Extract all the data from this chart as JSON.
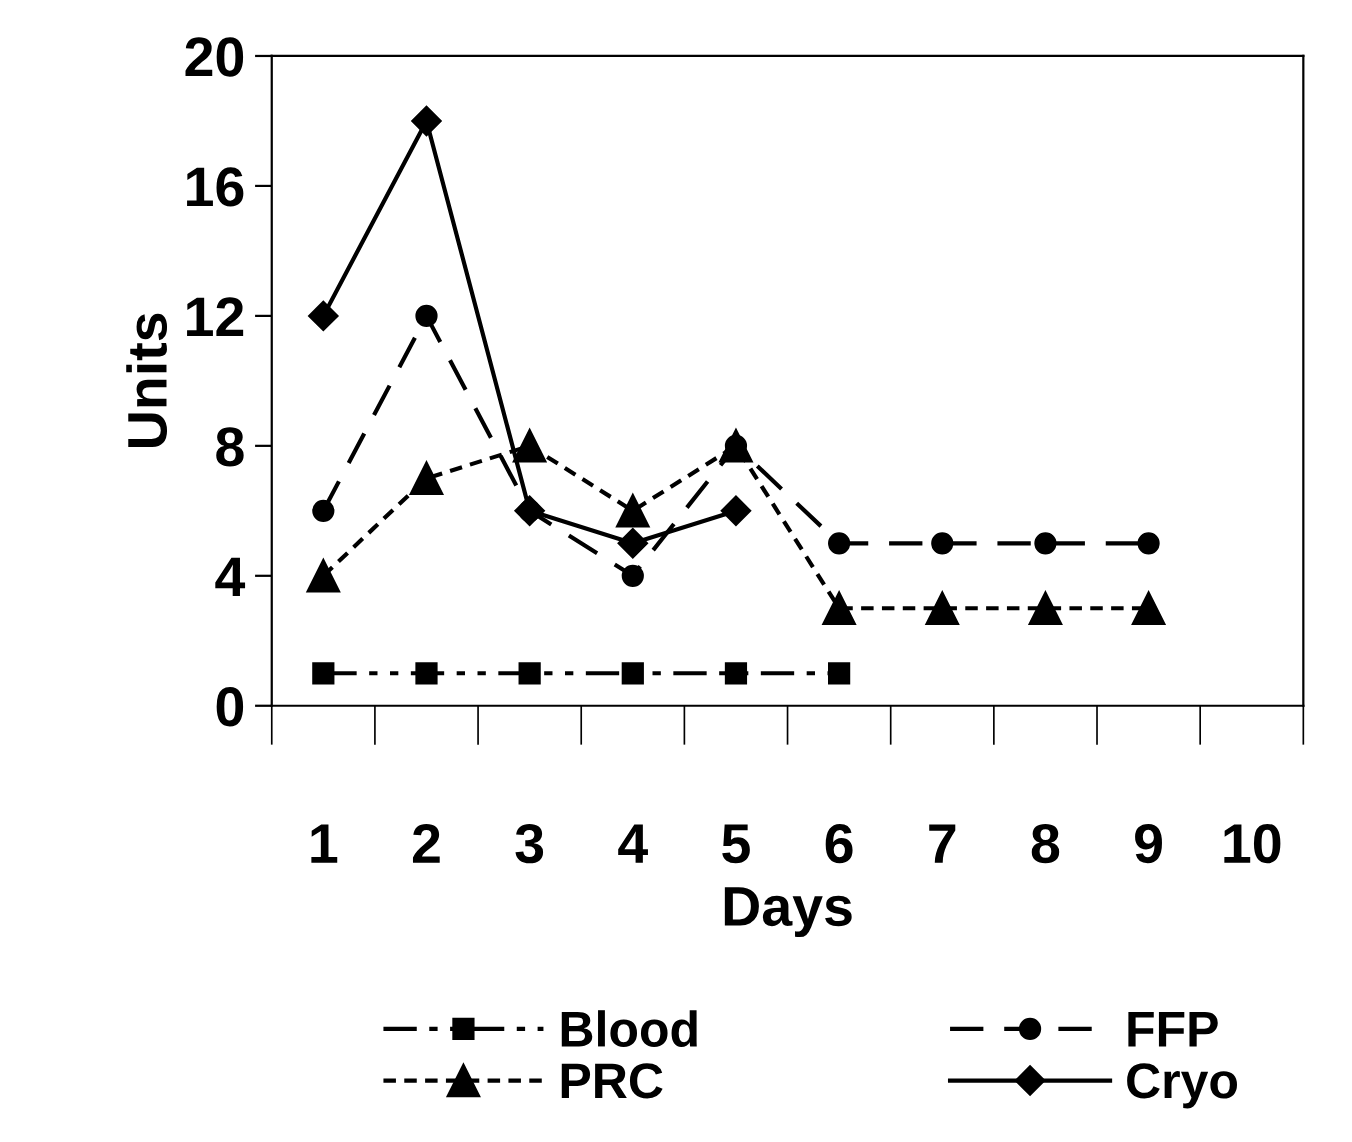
{
  "chart_data": {
    "type": "line",
    "xlabel": "Days",
    "ylabel": "Units",
    "categories": [
      "1",
      "2",
      "3",
      "4",
      "5",
      "6",
      "7",
      "8",
      "9",
      "10"
    ],
    "ylim": [
      0,
      20
    ],
    "yticks": [
      0,
      4,
      8,
      12,
      16,
      20
    ],
    "grid": false,
    "legend": "bottom",
    "series": [
      {
        "name": "Blood",
        "color": "#000000",
        "marker": "square",
        "line_style": "dashdotdot",
        "values": [
          1,
          1,
          1,
          1,
          1,
          1,
          null,
          null,
          null,
          null
        ]
      },
      {
        "name": "FFP",
        "color": "#000000",
        "marker": "circle",
        "line_style": "dashed",
        "values": [
          6,
          12,
          6,
          4,
          8,
          5,
          5,
          5,
          5,
          null
        ]
      },
      {
        "name": "PRC",
        "color": "#000000",
        "marker": "triangle",
        "line_style": "dotted",
        "values": [
          4,
          7,
          8,
          6,
          8,
          3,
          3,
          3,
          3,
          null
        ]
      },
      {
        "name": "Cryo",
        "color": "#000000",
        "marker": "diamond",
        "line_style": "solid",
        "values": [
          12,
          18,
          6,
          5,
          6,
          null,
          null,
          null,
          null,
          null
        ]
      }
    ]
  }
}
